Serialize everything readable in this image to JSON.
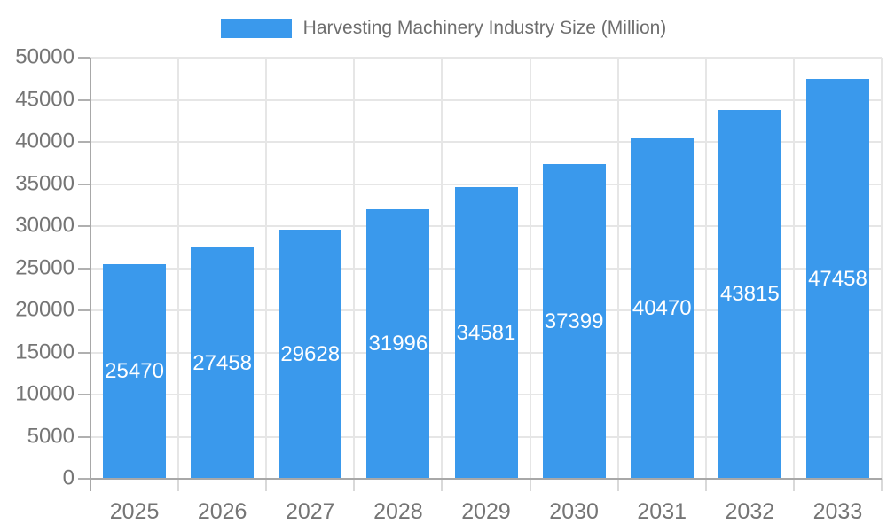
{
  "colors": {
    "bar": "#3A99EC",
    "bar_label": "#FFFFFF",
    "axis_text": "#757575",
    "legend_text": "#6E6E6E",
    "grid_line": "#E6E6E6",
    "axis_line": "#A8A8A8",
    "tick_line": "#B0B0B0",
    "tick_line_light": "#D9D9D9",
    "background": "#FFFFFF"
  },
  "chart_data": {
    "type": "bar",
    "title": "Harvesting Machinery Industry Size (Million)",
    "series_name": "Harvesting Machinery Industry Size (Million)",
    "categories": [
      "2025",
      "2026",
      "2027",
      "2028",
      "2029",
      "2030",
      "2031",
      "2032",
      "2033"
    ],
    "values": [
      25470,
      27458,
      29628,
      31996,
      34581,
      37399,
      40470,
      43815,
      47458
    ],
    "xlabel": "",
    "ylabel": "",
    "ylim": [
      0,
      50000
    ],
    "ytick_step": 5000,
    "yticks": [
      0,
      5000,
      10000,
      15000,
      20000,
      25000,
      30000,
      35000,
      40000,
      45000,
      50000
    ],
    "grid": true,
    "legend_position": "top-center",
    "bar_value_labels": "inside-center"
  }
}
